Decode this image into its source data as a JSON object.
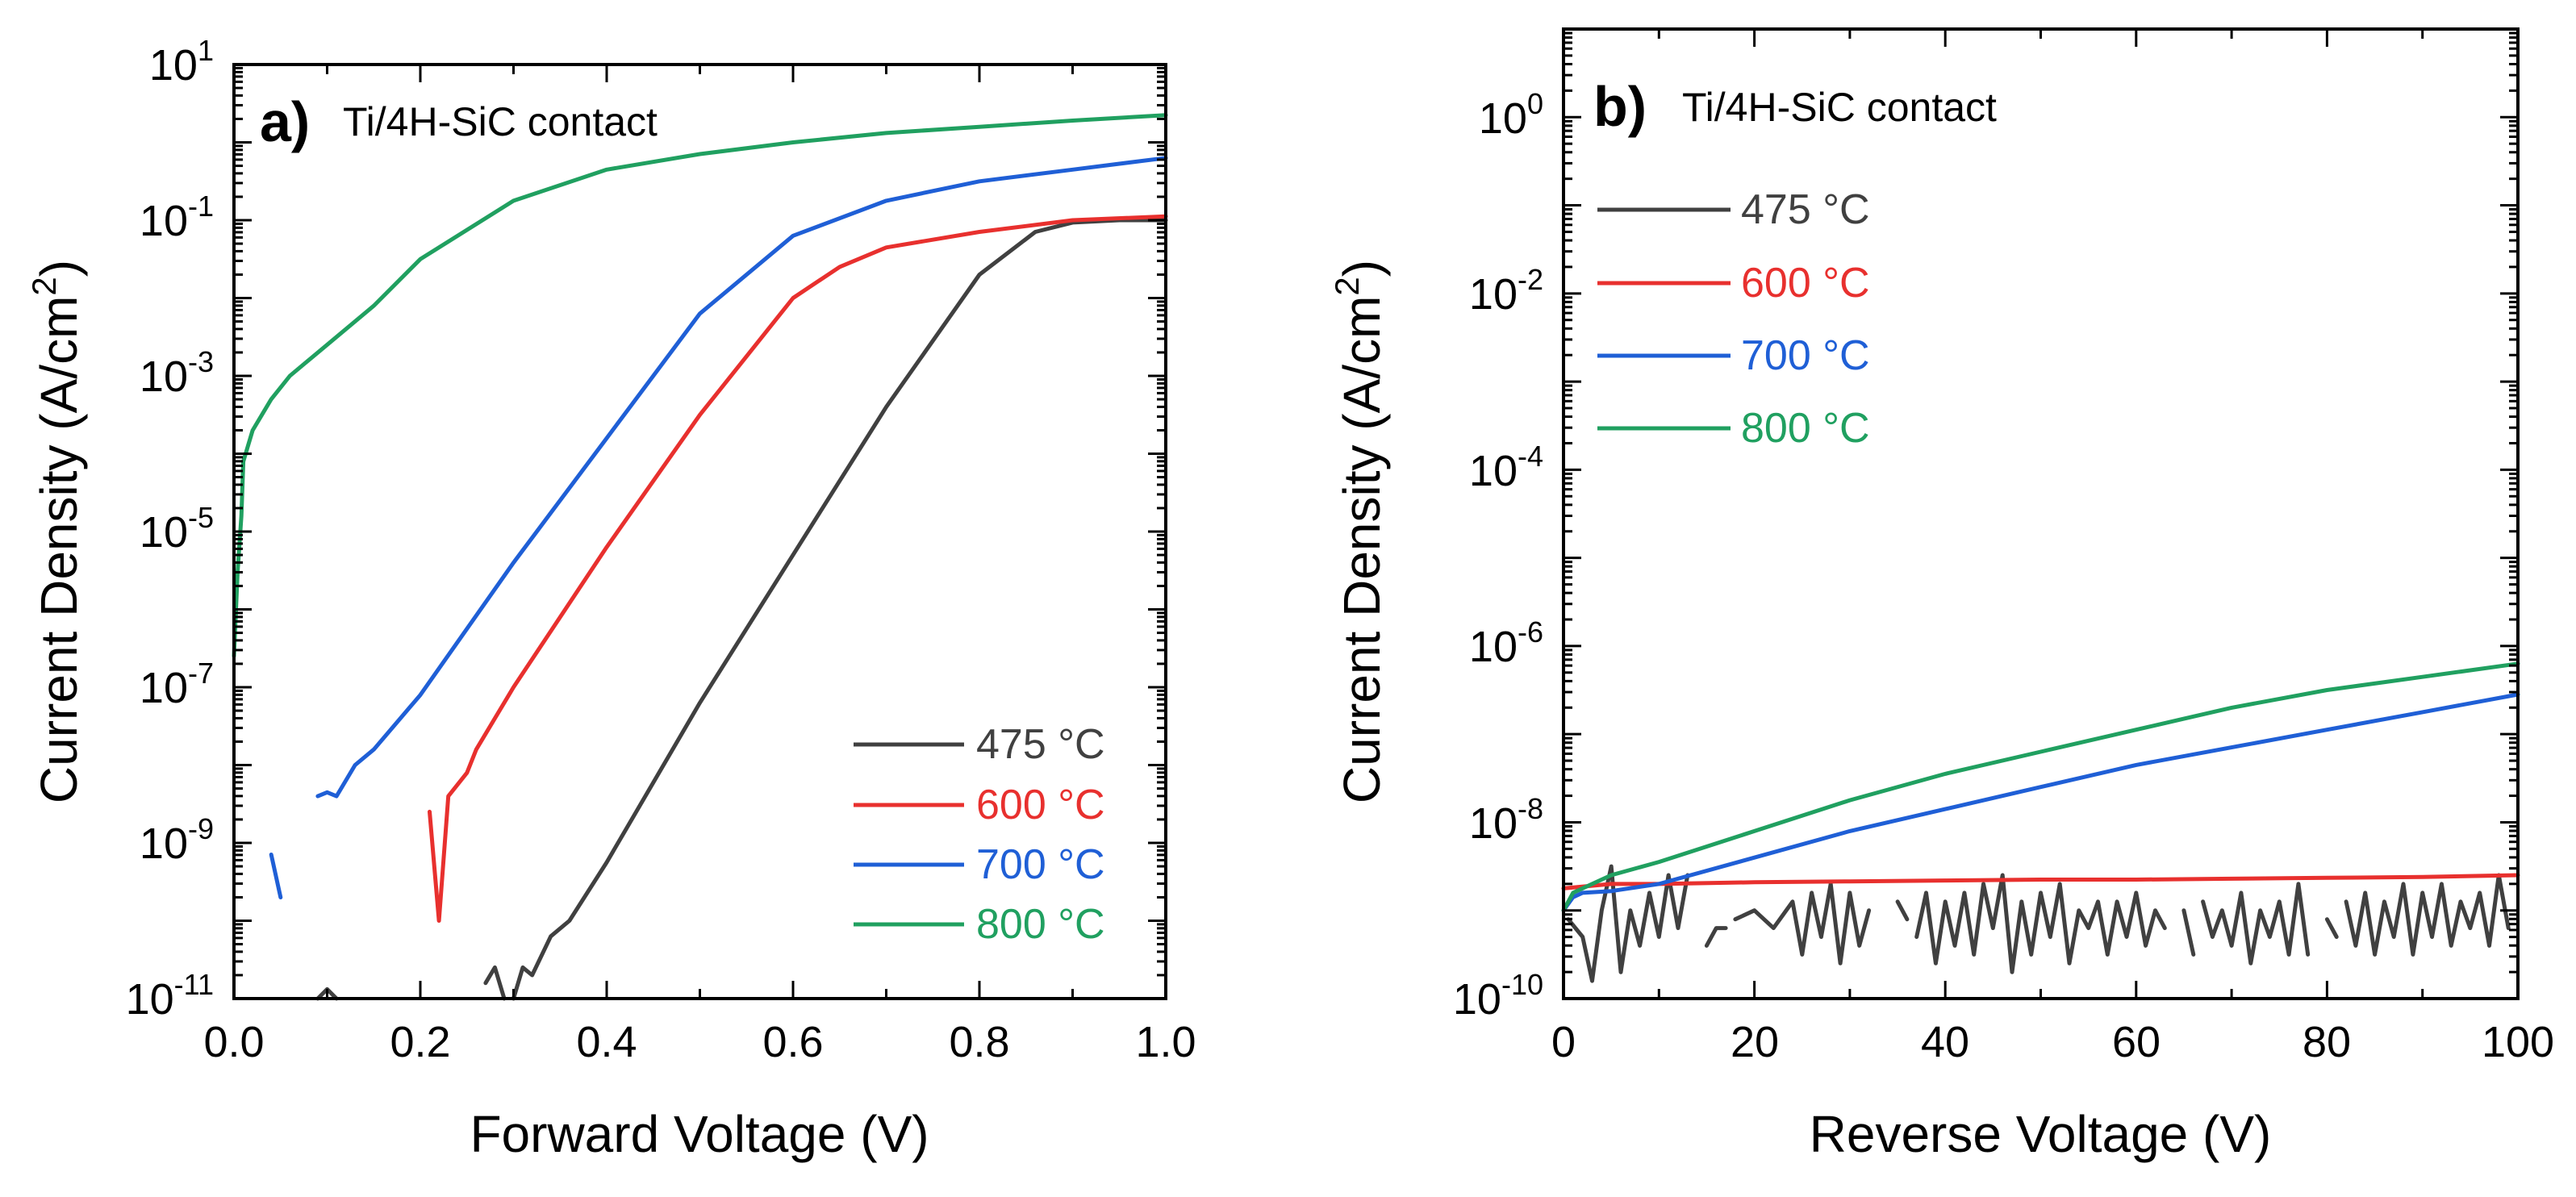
{
  "figure": "Ti/4H-SiC contact current density vs voltage",
  "panels": [
    {
      "letter": "a)",
      "title": "Ti/4H-SiC contact",
      "xlabel": "Forward Voltage (V)",
      "ylabel": "Current Density (A/cm",
      "ylabel_sup": "2",
      "ylabel_end": ")",
      "xticks": [
        "0.0",
        "0.2",
        "0.4",
        "0.6",
        "0.8",
        "1.0"
      ],
      "yticks": [
        {
          "base": "10",
          "exp": "-11"
        },
        {
          "base": "10",
          "exp": "-9"
        },
        {
          "base": "10",
          "exp": "-7"
        },
        {
          "base": "10",
          "exp": "-5"
        },
        {
          "base": "10",
          "exp": "-3"
        },
        {
          "base": "10",
          "exp": "-1"
        },
        {
          "base": "10",
          "exp": "1"
        }
      ],
      "legend": [
        "475 °C",
        "600 °C",
        "700 °C",
        "800 °C"
      ]
    },
    {
      "letter": "b)",
      "title": "Ti/4H-SiC contact",
      "xlabel": "Reverse Voltage (V)",
      "ylabel": "Current Density (A/cm",
      "ylabel_sup": "2",
      "ylabel_end": ")",
      "xticks": [
        "0",
        "20",
        "40",
        "60",
        "80",
        "100"
      ],
      "yticks": [
        {
          "base": "10",
          "exp": "-10"
        },
        {
          "base": "10",
          "exp": "-8"
        },
        {
          "base": "10",
          "exp": "-6"
        },
        {
          "base": "10",
          "exp": "-4"
        },
        {
          "base": "10",
          "exp": "-2"
        },
        {
          "base": "10",
          "exp": "0"
        }
      ],
      "legend": [
        "475 °C",
        "600 °C",
        "700 °C",
        "800 °C"
      ]
    }
  ],
  "chart_data": [
    {
      "type": "line",
      "panel": "a",
      "title": "Ti/4H-SiC contact",
      "xlabel": "Forward Voltage (V)",
      "ylabel": "Current Density (A/cm2)",
      "xlim": [
        0,
        1.0
      ],
      "ylim_log10": [
        -11,
        1
      ],
      "yscale": "log",
      "legend_position": "bottom-right",
      "series": [
        {
          "name": "475 °C",
          "color": "#404040",
          "segments": [
            [
              [
                0.09,
                -11.0
              ],
              [
                0.1,
                -10.88
              ],
              [
                0.11,
                -11.0
              ]
            ],
            [
              [
                0.27,
                -10.8
              ],
              [
                0.28,
                -10.6
              ],
              [
                0.29,
                -11.0
              ]
            ],
            [
              [
                0.3,
                -11.0
              ],
              [
                0.31,
                -10.6
              ],
              [
                0.32,
                -10.7
              ],
              [
                0.34,
                -10.2
              ],
              [
                0.36,
                -10.0
              ],
              [
                0.4,
                -9.25
              ],
              [
                0.5,
                -7.2
              ],
              [
                0.6,
                -5.3
              ],
              [
                0.7,
                -3.4
              ],
              [
                0.8,
                -1.7
              ],
              [
                0.86,
                -1.15
              ],
              [
                0.9,
                -1.03
              ],
              [
                0.95,
                -1.0
              ],
              [
                1.0,
                -1.0
              ]
            ]
          ]
        },
        {
          "name": "600 °C",
          "color": "#e8302e",
          "segments": [
            [
              [
                0.21,
                -8.6
              ],
              [
                0.22,
                -10.0
              ],
              [
                0.23,
                -8.4
              ],
              [
                0.25,
                -8.1
              ],
              [
                0.26,
                -7.8
              ],
              [
                0.3,
                -7.0
              ],
              [
                0.4,
                -5.2
              ],
              [
                0.5,
                -3.5
              ],
              [
                0.6,
                -2.0
              ],
              [
                0.65,
                -1.6
              ],
              [
                0.7,
                -1.35
              ],
              [
                0.8,
                -1.15
              ],
              [
                0.9,
                -1.0
              ],
              [
                1.0,
                -0.95
              ]
            ]
          ]
        },
        {
          "name": "700 °C",
          "color": "#1f5fd6",
          "segments": [
            [
              [
                0.04,
                -9.15
              ],
              [
                0.05,
                -9.7
              ]
            ],
            [
              [
                0.09,
                -8.4
              ],
              [
                0.1,
                -8.35
              ],
              [
                0.11,
                -8.4
              ],
              [
                0.13,
                -8.0
              ],
              [
                0.15,
                -7.8
              ],
              [
                0.2,
                -7.1
              ],
              [
                0.3,
                -5.4
              ],
              [
                0.4,
                -3.8
              ],
              [
                0.5,
                -2.2
              ],
              [
                0.6,
                -1.2
              ],
              [
                0.7,
                -0.75
              ],
              [
                0.8,
                -0.5
              ],
              [
                0.9,
                -0.35
              ],
              [
                1.0,
                -0.2
              ]
            ]
          ]
        },
        {
          "name": "800 °C",
          "color": "#20a060",
          "segments": [
            [
              [
                0.0,
                -6.6
              ],
              [
                0.004,
                -5.5
              ],
              [
                0.008,
                -4.8
              ],
              [
                0.01,
                -4.1
              ],
              [
                0.02,
                -3.7
              ],
              [
                0.04,
                -3.3
              ],
              [
                0.06,
                -3.0
              ],
              [
                0.1,
                -2.6
              ],
              [
                0.15,
                -2.1
              ],
              [
                0.2,
                -1.5
              ],
              [
                0.3,
                -0.75
              ],
              [
                0.4,
                -0.35
              ],
              [
                0.5,
                -0.15
              ],
              [
                0.6,
                0.0
              ],
              [
                0.7,
                0.12
              ],
              [
                0.8,
                0.2
              ],
              [
                0.9,
                0.28
              ],
              [
                1.0,
                0.35
              ]
            ]
          ]
        }
      ]
    },
    {
      "type": "line",
      "panel": "b",
      "title": "Ti/4H-SiC contact",
      "xlabel": "Reverse Voltage (V)",
      "ylabel": "Current Density (A/cm2)",
      "xlim": [
        0,
        100
      ],
      "ylim_log10": [
        -10,
        1
      ],
      "yscale": "log",
      "legend_position": "top-left",
      "series": [
        {
          "name": "475 °C",
          "color": "#404040",
          "segments": [
            [
              [
                0.5,
                -9.1
              ],
              [
                2,
                -9.3
              ],
              [
                3,
                -9.8
              ],
              [
                4,
                -9.0
              ],
              [
                5,
                -8.5
              ],
              [
                6,
                -9.7
              ],
              [
                7,
                -9.0
              ],
              [
                8,
                -9.4
              ],
              [
                9,
                -8.8
              ],
              [
                10,
                -9.3
              ],
              [
                11,
                -8.6
              ],
              [
                12,
                -9.2
              ],
              [
                13,
                -8.6
              ]
            ],
            [
              [
                15,
                -9.4
              ],
              [
                16,
                -9.2
              ],
              [
                17,
                -9.2
              ]
            ],
            [
              [
                18,
                -9.1
              ],
              [
                20,
                -9.0
              ],
              [
                22,
                -9.2
              ],
              [
                24,
                -8.9
              ],
              [
                25,
                -9.5
              ],
              [
                26,
                -8.8
              ],
              [
                27,
                -9.3
              ],
              [
                28,
                -8.7
              ],
              [
                29,
                -9.6
              ],
              [
                30,
                -8.8
              ],
              [
                31,
                -9.4
              ],
              [
                32,
                -9.0
              ]
            ],
            [
              [
                35,
                -8.9
              ],
              [
                36,
                -9.1
              ]
            ],
            [
              [
                37,
                -9.3
              ],
              [
                38,
                -8.8
              ],
              [
                39,
                -9.6
              ],
              [
                40,
                -8.9
              ],
              [
                41,
                -9.4
              ],
              [
                42,
                -8.8
              ],
              [
                43,
                -9.5
              ],
              [
                44,
                -8.7
              ],
              [
                45,
                -9.2
              ],
              [
                46,
                -8.6
              ],
              [
                47,
                -9.7
              ],
              [
                48,
                -8.9
              ],
              [
                49,
                -9.5
              ],
              [
                50,
                -8.8
              ],
              [
                51,
                -9.3
              ],
              [
                52,
                -8.7
              ],
              [
                53,
                -9.6
              ],
              [
                54,
                -9.0
              ],
              [
                55,
                -9.2
              ],
              [
                56,
                -8.9
              ],
              [
                57,
                -9.5
              ],
              [
                58,
                -8.9
              ],
              [
                59,
                -9.3
              ],
              [
                60,
                -8.8
              ],
              [
                61,
                -9.4
              ],
              [
                62,
                -9.0
              ],
              [
                63,
                -9.2
              ]
            ],
            [
              [
                65,
                -9.0
              ],
              [
                66,
                -9.5
              ]
            ],
            [
              [
                67,
                -8.9
              ],
              [
                68,
                -9.3
              ],
              [
                69,
                -9.0
              ],
              [
                70,
                -9.4
              ],
              [
                71,
                -8.8
              ],
              [
                72,
                -9.6
              ],
              [
                73,
                -9.0
              ],
              [
                74,
                -9.3
              ],
              [
                75,
                -8.9
              ],
              [
                76,
                -9.5
              ],
              [
                77,
                -8.7
              ],
              [
                78,
                -9.5
              ]
            ],
            [
              [
                80,
                -9.1
              ],
              [
                81,
                -9.3
              ]
            ],
            [
              [
                82,
                -8.9
              ],
              [
                83,
                -9.4
              ],
              [
                84,
                -8.8
              ],
              [
                85,
                -9.5
              ],
              [
                86,
                -8.9
              ],
              [
                87,
                -9.3
              ],
              [
                88,
                -8.7
              ],
              [
                89,
                -9.5
              ],
              [
                90,
                -8.8
              ],
              [
                91,
                -9.3
              ],
              [
                92,
                -8.7
              ],
              [
                93,
                -9.4
              ],
              [
                94,
                -8.9
              ],
              [
                95,
                -9.2
              ],
              [
                96,
                -8.8
              ],
              [
                97,
                -9.4
              ],
              [
                98,
                -8.6
              ],
              [
                99,
                -9.2
              ]
            ]
          ]
        },
        {
          "name": "600 °C",
          "color": "#e8302e",
          "segments": [
            [
              [
                0,
                -8.75
              ],
              [
                5,
                -8.7
              ],
              [
                10,
                -8.7
              ],
              [
                20,
                -8.68
              ],
              [
                30,
                -8.67
              ],
              [
                40,
                -8.66
              ],
              [
                50,
                -8.65
              ],
              [
                60,
                -8.65
              ],
              [
                70,
                -8.64
              ],
              [
                80,
                -8.63
              ],
              [
                90,
                -8.62
              ],
              [
                100,
                -8.6
              ]
            ]
          ]
        },
        {
          "name": "700 °C",
          "color": "#1f5fd6",
          "segments": [
            [
              [
                0,
                -9.0
              ],
              [
                1,
                -8.85
              ],
              [
                2,
                -8.8
              ],
              [
                5,
                -8.78
              ],
              [
                10,
                -8.7
              ],
              [
                20,
                -8.4
              ],
              [
                30,
                -8.1
              ],
              [
                40,
                -7.85
              ],
              [
                50,
                -7.6
              ],
              [
                60,
                -7.35
              ],
              [
                70,
                -7.15
              ],
              [
                80,
                -6.95
              ],
              [
                90,
                -6.75
              ],
              [
                100,
                -6.55
              ]
            ]
          ]
        },
        {
          "name": "800 °C",
          "color": "#20a060",
          "segments": [
            [
              [
                0,
                -9.0
              ],
              [
                1,
                -8.8
              ],
              [
                3,
                -8.7
              ],
              [
                5,
                -8.6
              ],
              [
                10,
                -8.45
              ],
              [
                20,
                -8.1
              ],
              [
                30,
                -7.75
              ],
              [
                40,
                -7.45
              ],
              [
                50,
                -7.2
              ],
              [
                60,
                -6.95
              ],
              [
                70,
                -6.7
              ],
              [
                80,
                -6.5
              ],
              [
                90,
                -6.35
              ],
              [
                100,
                -6.2
              ]
            ]
          ]
        }
      ]
    }
  ]
}
